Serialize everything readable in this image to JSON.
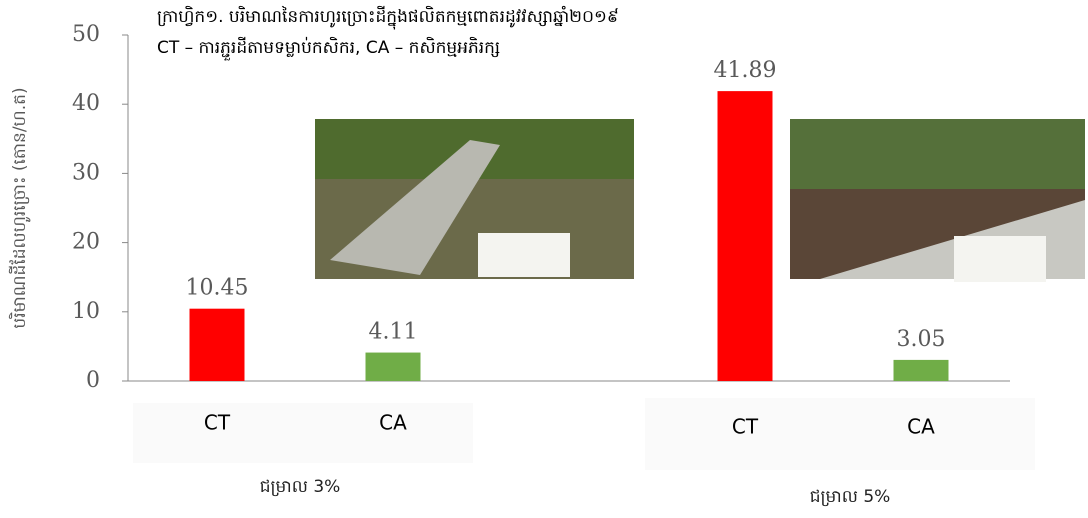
{
  "chart_data": {
    "type": "bar",
    "title": "ក្រាហ្វិក១. បរិមាណនៃការហូរច្រោះដីក្នុងផលិតកម្មពោតរដូវវស្សាឆ្នាំ២០១៩",
    "subtitle": "CT – ការភ្ជួរដីតាមទម្លាប់កសិករ, CA – កសិកម្មអភិរក្ស",
    "y_label": "បរិមាណដីដែលហូរច្រោះ (តោន/ហ.ត)",
    "groups": [
      {
        "name": "ជម្រាល 3%",
        "categories": [
          "CT",
          "CA"
        ],
        "values": [
          10.45,
          4.11
        ],
        "colors": [
          "#ff0000",
          "#70ad47"
        ]
      },
      {
        "name": "ជម្រាល 5%",
        "categories": [
          "CT",
          "CA"
        ],
        "values": [
          41.89,
          3.05
        ],
        "colors": [
          "#ff0000",
          "#70ad47"
        ]
      }
    ],
    "ylim": [
      0,
      50
    ],
    "yticks": [
      0,
      10,
      20,
      30,
      40,
      50
    ]
  }
}
